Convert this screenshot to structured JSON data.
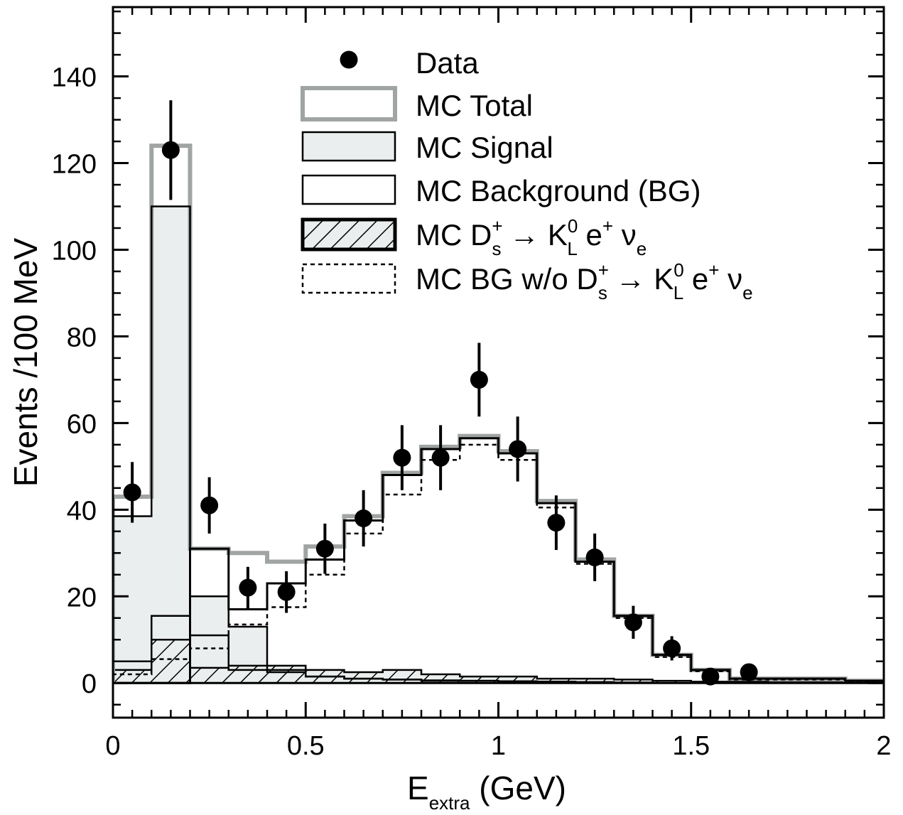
{
  "chart_data": {
    "type": "bar",
    "xlabel": "E",
    "xlabel_subscript": "extra",
    "xlabel_unit": " (GeV)",
    "ylabel": "Events /100 MeV",
    "xlim": [
      0,
      2
    ],
    "ylim": [
      -8,
      156
    ],
    "x_ticks": [
      0,
      0.5,
      1,
      1.5,
      2
    ],
    "x_tick_labels": [
      "0",
      "0.5",
      "1",
      "1.5",
      "2"
    ],
    "y_ticks": [
      0,
      20,
      40,
      60,
      80,
      100,
      120,
      140
    ],
    "y_tick_labels": [
      "0",
      "20",
      "40",
      "60",
      "80",
      "100",
      "120",
      "140"
    ],
    "grid": false,
    "legend_position": "top-right",
    "bin_edges": [
      0,
      0.1,
      0.2,
      0.3,
      0.4,
      0.5,
      0.6,
      0.7,
      0.8,
      0.9,
      1.0,
      1.1,
      1.2,
      1.3,
      1.4,
      1.5,
      1.6,
      1.7,
      1.8,
      1.9,
      2.0
    ],
    "series": [
      {
        "name": "Data",
        "style": "points",
        "x": [
          0.05,
          0.15,
          0.25,
          0.35,
          0.45,
          0.55,
          0.65,
          0.75,
          0.85,
          0.95,
          1.05,
          1.15,
          1.25,
          1.35,
          1.45,
          1.55,
          1.65
        ],
        "values": [
          44,
          123,
          41,
          22,
          21,
          31,
          38,
          52,
          52,
          70,
          54,
          37,
          29,
          14,
          8,
          1.5,
          2.5
        ],
        "errors": [
          7,
          11.5,
          6.5,
          4.8,
          4.8,
          5.8,
          6.5,
          7.5,
          7.5,
          8.5,
          7.5,
          6.3,
          5.5,
          3.8,
          2.8,
          1.2,
          1.5
        ]
      },
      {
        "name": "MC Total",
        "style": "step-gray",
        "values": [
          43,
          124,
          31,
          30,
          28,
          31.5,
          38.5,
          48.5,
          54.5,
          57,
          53.5,
          42,
          28.5,
          15.5,
          6.5,
          3,
          1,
          1,
          1,
          0.5
        ]
      },
      {
        "name": "MC Signal",
        "style": "filled",
        "values": [
          38.5,
          110,
          20,
          13,
          3,
          1.5,
          1,
          0.8,
          0.6,
          0.5,
          0.4,
          0.3,
          0.2,
          0.1,
          0,
          0,
          0,
          0,
          0,
          0
        ]
      },
      {
        "name": "MC Background (BG)",
        "style": "step-black",
        "values": [
          43,
          124,
          31,
          17,
          23,
          28.5,
          37.5,
          48,
          54,
          56.5,
          53,
          41.5,
          28,
          15.5,
          6.5,
          3,
          1,
          1,
          1,
          0.5
        ]
      },
      {
        "name": "MC D_s^+ → K_L^0 e^+ ν_e",
        "style": "hatched",
        "values": [
          3,
          10,
          3.5,
          4,
          4,
          3,
          2.5,
          3,
          2,
          1.5,
          1.5,
          1,
          1,
          0.8,
          0.5,
          0.3,
          0.3,
          0.2,
          0.2,
          0.2
        ]
      },
      {
        "name": "MC BG w/o D_s^+ → K_L^0 e^+ ν_e",
        "style": "dotted",
        "values": [
          2,
          5.5,
          8,
          13.5,
          17.5,
          25,
          34.5,
          43.5,
          51.5,
          55,
          51.5,
          40.5,
          27.5,
          15,
          6,
          2.7,
          0.8,
          0.8,
          0.8,
          0.3
        ]
      }
    ],
    "signal_low_component": [
      5,
      15.5,
      11,
      3,
      2.5,
      1.5,
      1,
      0.8,
      0.5,
      0.5,
      0.4,
      0.3,
      0.2,
      0.1,
      0,
      0,
      0,
      0,
      0,
      0
    ],
    "legend": {
      "entries": [
        {
          "key": "data",
          "label": "Data"
        },
        {
          "key": "mc_total",
          "label": "MC Total"
        },
        {
          "key": "mc_signal",
          "label": "MC Signal"
        },
        {
          "key": "mc_bg",
          "label": "MC Background (BG)"
        },
        {
          "key": "mc_kl",
          "label_prefix": "MC D",
          "label_suffix": " e",
          "nu": " ν"
        },
        {
          "key": "mc_bg_wo",
          "label_prefix": "MC BG w/o D",
          "label_suffix": " e",
          "nu": " ν"
        }
      ],
      "ds_sub": "s",
      "ds_sup": "+",
      "arrow": " → K",
      "kl_sub": "L",
      "kl_sup": "0",
      "e_sup": "+",
      "nu_sub": "e"
    },
    "colors": {
      "mc_total": "#a0a5a3",
      "mc_signal_fill": "#ebeeee",
      "line": "#000000"
    }
  }
}
